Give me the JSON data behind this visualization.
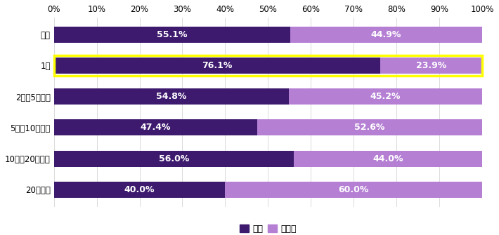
{
  "categories": [
    "全体",
    "1人",
    "2人～5人未満",
    "5人～10人未満",
    "10人～20人未満",
    "20人以上"
  ],
  "hai_values": [
    55.1,
    76.1,
    54.8,
    47.4,
    56.0,
    40.0
  ],
  "iie_values": [
    44.9,
    23.9,
    45.2,
    52.6,
    44.0,
    60.0
  ],
  "hai_color": "#3d1a6e",
  "iie_color": "#b57fd4",
  "highlight_row": 1,
  "highlight_color": "#ffff00",
  "bar_height": 0.52,
  "background_color": "#ffffff",
  "legend_hai": "はい",
  "legend_iie": "いいえ",
  "xlabel_ticks": [
    0,
    10,
    20,
    30,
    40,
    50,
    60,
    70,
    80,
    90,
    100
  ],
  "text_color": "#ffffff",
  "fontsize_bar": 9,
  "fontsize_tick": 8.5,
  "fontsize_legend": 9
}
